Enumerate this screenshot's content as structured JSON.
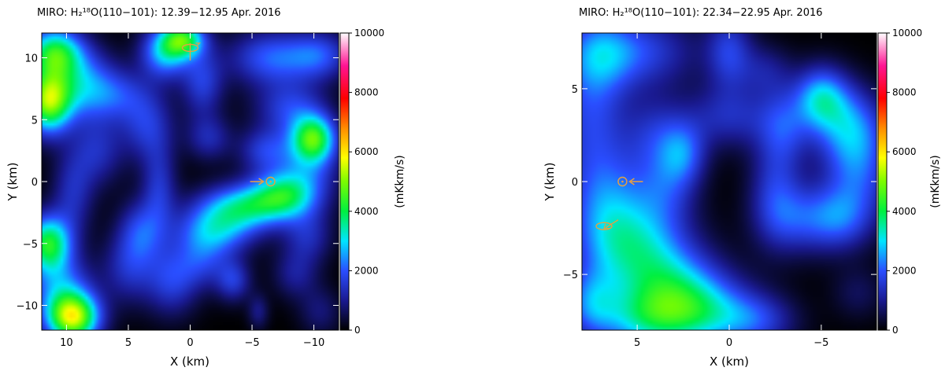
{
  "chart_data": [
    {
      "type": "heatmap",
      "title": "MIRO: H₂¹⁸O(110−101): 12.39−12.95 Apr. 2016",
      "xlabel": "X (km)",
      "ylabel": "Y (km)",
      "xlim": [
        12,
        -12
      ],
      "ylim": [
        -12,
        12
      ],
      "x_ticks": [
        10,
        5,
        0,
        -5,
        -10
      ],
      "y_ticks": [
        10,
        5,
        0,
        -5,
        -10
      ],
      "x_tick_labels": [
        "10",
        "5",
        "0",
        "−5",
        "−10"
      ],
      "y_tick_labels": [
        "10",
        "5",
        "0",
        "−5",
        "−10"
      ],
      "colorbar": {
        "label": "(mKkm/s)",
        "range": [
          0,
          10000
        ],
        "ticks": [
          0,
          2000,
          4000,
          6000,
          8000,
          10000
        ],
        "tick_labels": [
          "0",
          "2000",
          "4000",
          "6000",
          "8000",
          "10000"
        ]
      },
      "blobs": [
        {
          "x": 11.5,
          "y": 6.5,
          "value": 4700,
          "sx": 1.3,
          "sy": 1.8
        },
        {
          "x": 11.0,
          "y": 10.5,
          "value": 3600,
          "sx": 1.6,
          "sy": 1.4
        },
        {
          "x": 9.0,
          "y": 8.0,
          "value": 2200,
          "sx": 2.0,
          "sy": 2.0
        },
        {
          "x": 2.0,
          "y": 10.5,
          "value": 2800,
          "sx": 1.4,
          "sy": 1.5
        },
        {
          "x": 0.5,
          "y": 11.5,
          "value": 3400,
          "sx": 1.2,
          "sy": 1.0
        },
        {
          "x": -1.0,
          "y": 8.0,
          "value": 1600,
          "sx": 1.2,
          "sy": 2.0
        },
        {
          "x": -6.5,
          "y": 10.0,
          "value": 2000,
          "sx": 2.4,
          "sy": 1.6
        },
        {
          "x": -10.5,
          "y": 10.2,
          "value": 1700,
          "sx": 1.8,
          "sy": 1.4
        },
        {
          "x": 6.0,
          "y": 7.0,
          "value": 1400,
          "sx": 2.0,
          "sy": 1.5
        },
        {
          "x": 3.5,
          "y": 4.5,
          "value": 1500,
          "sx": 1.5,
          "sy": 2.0
        },
        {
          "x": 7.5,
          "y": 2.5,
          "value": 1300,
          "sx": 1.5,
          "sy": 2.0
        },
        {
          "x": 9.5,
          "y": -1.0,
          "value": 1300,
          "sx": 1.2,
          "sy": 2.5
        },
        {
          "x": 2.5,
          "y": -0.5,
          "value": 1400,
          "sx": 1.0,
          "sy": 2.5
        },
        {
          "x": -1.5,
          "y": 3.5,
          "value": 1200,
          "sx": 1.3,
          "sy": 1.3
        },
        {
          "x": -10.0,
          "y": 3.5,
          "value": 3400,
          "sx": 1.2,
          "sy": 1.3
        },
        {
          "x": -9.5,
          "y": 1.5,
          "value": 1800,
          "sx": 1.8,
          "sy": 2.5
        },
        {
          "x": -8.0,
          "y": 6.0,
          "value": 1500,
          "sx": 2.0,
          "sy": 1.5
        },
        {
          "x": -4.5,
          "y": -2.0,
          "value": 3000,
          "sx": 2.6,
          "sy": 1.3
        },
        {
          "x": -7.5,
          "y": -1.0,
          "value": 2600,
          "sx": 1.8,
          "sy": 1.3
        },
        {
          "x": -2.0,
          "y": -4.0,
          "value": 2400,
          "sx": 2.2,
          "sy": 1.4
        },
        {
          "x": -6.0,
          "y": 2.5,
          "value": 1500,
          "sx": 1.5,
          "sy": 1.3
        },
        {
          "x": 11.5,
          "y": -5.0,
          "value": 4000,
          "sx": 1.3,
          "sy": 1.6
        },
        {
          "x": 9.5,
          "y": -11.0,
          "value": 5300,
          "sx": 1.5,
          "sy": 1.4
        },
        {
          "x": 10.5,
          "y": -8.5,
          "value": 2000,
          "sx": 1.8,
          "sy": 1.8
        },
        {
          "x": 5.0,
          "y": -7.0,
          "value": 1300,
          "sx": 1.5,
          "sy": 2.0
        },
        {
          "x": 4.0,
          "y": -4.0,
          "value": 1600,
          "sx": 1.3,
          "sy": 1.8
        },
        {
          "x": 1.5,
          "y": -8.0,
          "value": 1600,
          "sx": 1.5,
          "sy": 2.0
        },
        {
          "x": -1.0,
          "y": -6.5,
          "value": 1300,
          "sx": 1.5,
          "sy": 1.5
        },
        {
          "x": -3.5,
          "y": -8.0,
          "value": 1500,
          "sx": 1.0,
          "sy": 1.2
        },
        {
          "x": -5.5,
          "y": -10.5,
          "value": 900,
          "sx": 0.6,
          "sy": 1.0
        },
        {
          "x": -9.5,
          "y": -4.5,
          "value": 1200,
          "sx": 1.4,
          "sy": 1.5
        },
        {
          "x": -8.5,
          "y": -7.5,
          "value": 1000,
          "sx": 1.3,
          "sy": 1.4
        },
        {
          "x": -10.5,
          "y": -10.5,
          "value": 800,
          "sx": 1.2,
          "sy": 1.4
        }
      ],
      "markers": [
        {
          "kind": "sun-symbol",
          "x": -6.5,
          "y": 0.0,
          "arrow": "from-left"
        },
        {
          "kind": "spin-axis",
          "x": 0.0,
          "y": 10.8,
          "arrow": "up"
        }
      ]
    },
    {
      "type": "heatmap",
      "title": "MIRO: H₂¹⁸O(110−101): 22.34−22.95 Apr. 2016",
      "xlabel": "X (km)",
      "ylabel": "Y (km)",
      "xlim": [
        8,
        -8
      ],
      "ylim": [
        -8,
        8
      ],
      "x_ticks": [
        5,
        0,
        -5
      ],
      "y_ticks": [
        5,
        0,
        -5
      ],
      "x_tick_labels": [
        "5",
        "0",
        "−5"
      ],
      "y_tick_labels": [
        "5",
        "0",
        "−5"
      ],
      "colorbar": {
        "label": "(mKkm/s)",
        "range": [
          0,
          10000
        ],
        "ticks": [
          0,
          2000,
          4000,
          6000,
          8000,
          10000
        ],
        "tick_labels": [
          "0",
          "2000",
          "4000",
          "6000",
          "8000",
          "10000"
        ]
      },
      "blobs": [
        {
          "x": 7.5,
          "y": 4.0,
          "value": 1700,
          "sx": 1.4,
          "sy": 3.0
        },
        {
          "x": 6.5,
          "y": -1.5,
          "value": 2000,
          "sx": 1.6,
          "sy": 2.2
        },
        {
          "x": 5.0,
          "y": -3.5,
          "value": 2000,
          "sx": 2.0,
          "sy": 1.6
        },
        {
          "x": 3.5,
          "y": -5.5,
          "value": 2200,
          "sx": 2.0,
          "sy": 1.5
        },
        {
          "x": 1.5,
          "y": -7.0,
          "value": 2400,
          "sx": 2.0,
          "sy": 1.4
        },
        {
          "x": 4.5,
          "y": -7.5,
          "value": 2300,
          "sx": 2.0,
          "sy": 1.2
        },
        {
          "x": 7.5,
          "y": -6.5,
          "value": 1800,
          "sx": 1.0,
          "sy": 1.3
        },
        {
          "x": -1.5,
          "y": -7.5,
          "value": 1400,
          "sx": 1.5,
          "sy": 1.0
        },
        {
          "x": 4.5,
          "y": 7.0,
          "value": 1500,
          "sx": 2.0,
          "sy": 1.4
        },
        {
          "x": 7.0,
          "y": 7.0,
          "value": 1400,
          "sx": 1.4,
          "sy": 1.4
        },
        {
          "x": 0.0,
          "y": 7.0,
          "value": 1600,
          "sx": 0.9,
          "sy": 1.5
        },
        {
          "x": 2.5,
          "y": 1.5,
          "value": 1700,
          "sx": 0.9,
          "sy": 1.2
        },
        {
          "x": 4.0,
          "y": 2.5,
          "value": 1200,
          "sx": 1.2,
          "sy": 1.5
        },
        {
          "x": 3.5,
          "y": -0.5,
          "value": 1300,
          "sx": 1.2,
          "sy": 1.5
        },
        {
          "x": 0.0,
          "y": 3.5,
          "value": 1300,
          "sx": 1.8,
          "sy": 1.2
        },
        {
          "x": -3.0,
          "y": 3.0,
          "value": 1400,
          "sx": 1.0,
          "sy": 1.5
        },
        {
          "x": -2.5,
          "y": -0.5,
          "value": 1400,
          "sx": 1.0,
          "sy": 2.0
        },
        {
          "x": -4.0,
          "y": -2.0,
          "value": 1500,
          "sx": 1.5,
          "sy": 1.3
        },
        {
          "x": -5.0,
          "y": 4.5,
          "value": 2600,
          "sx": 1.0,
          "sy": 1.2
        },
        {
          "x": -6.5,
          "y": 3.0,
          "value": 1900,
          "sx": 1.3,
          "sy": 1.5
        },
        {
          "x": -7.0,
          "y": 0.5,
          "value": 1800,
          "sx": 1.3,
          "sy": 2.0
        },
        {
          "x": -6.0,
          "y": -2.0,
          "value": 1300,
          "sx": 1.2,
          "sy": 1.2
        },
        {
          "x": -7.0,
          "y": -6.0,
          "value": 600,
          "sx": 1.0,
          "sy": 1.0
        },
        {
          "x": -2.0,
          "y": 6.0,
          "value": 900,
          "sx": 1.0,
          "sy": 1.0
        }
      ],
      "markers": [
        {
          "kind": "sun-symbol",
          "x": 5.8,
          "y": 0.0,
          "arrow": "from-right"
        },
        {
          "kind": "spin-axis",
          "x": 6.8,
          "y": -2.4,
          "arrow": "up-right"
        }
      ]
    }
  ]
}
